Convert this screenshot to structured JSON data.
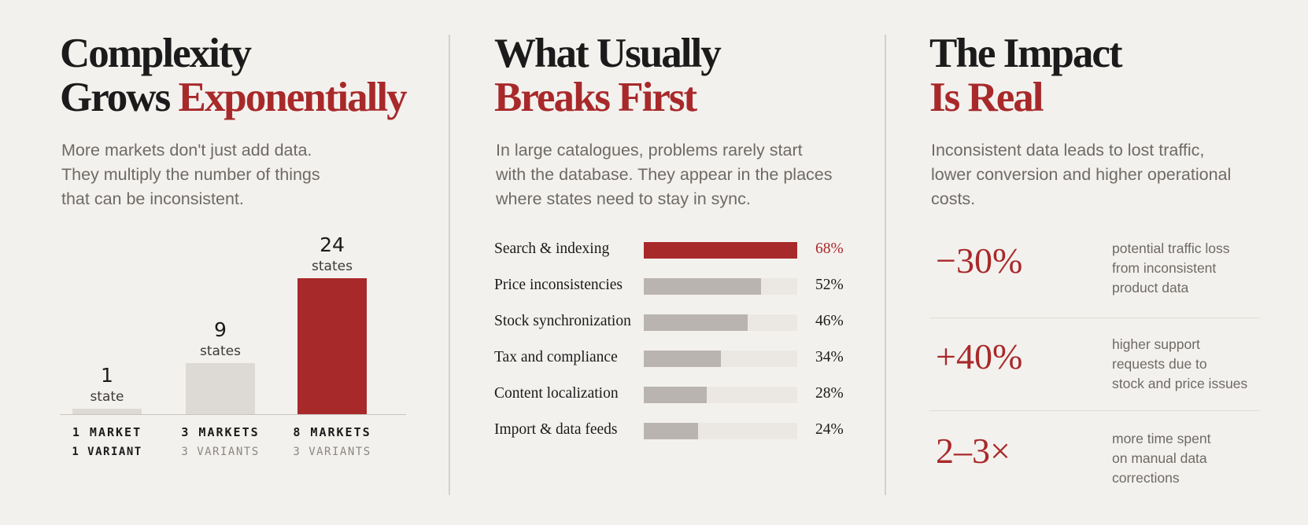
{
  "panels": [
    {
      "title_line1": "Complexity",
      "title_line2_plain": "Grows ",
      "title_line2_accent": "Exponentially",
      "lead": [
        "More markets don't just add data.",
        "They multiply the number of things",
        "that can be inconsistent."
      ]
    },
    {
      "title_line1": "What Usually",
      "title_line2_accent": "Breaks First",
      "lead": [
        "In large catalogues, problems rarely start",
        "with the database. They appear in the places",
        "where states need to stay in sync."
      ]
    },
    {
      "title_line1": "The Impact",
      "title_line2_accent": "Is Real",
      "lead": [
        "Inconsistent data leads to lost traffic,",
        "lower conversion and higher operational",
        "costs."
      ]
    }
  ],
  "colors": {
    "accent": "#a8292a",
    "bar_neutral": "#ddd9d5",
    "hbar_neutral": "#bab4b0",
    "background": "#f3f1ee"
  },
  "chart_data": [
    {
      "type": "bar",
      "title": "",
      "categories": [
        "1 MARKET",
        "3 MARKETS",
        "8 MARKETS"
      ],
      "subcategories": [
        "1 VARIANT",
        "3 VARIANTS",
        "3 VARIANTS"
      ],
      "values": [
        1,
        9,
        24
      ],
      "value_units": [
        "state",
        "states",
        "states"
      ],
      "highlight_index": 2,
      "ylim": [
        0,
        24
      ],
      "grid": false
    },
    {
      "type": "bar",
      "orientation": "horizontal",
      "title": "",
      "categories": [
        "Search & indexing",
        "Price inconsistencies",
        "Stock synchronization",
        "Tax and compliance",
        "Content localization",
        "Import & data feeds"
      ],
      "values": [
        68,
        52,
        46,
        34,
        28,
        24
      ],
      "value_labels": [
        "68%",
        "52%",
        "46%",
        "34%",
        "28%",
        "24%"
      ],
      "highlight_index": 0,
      "xlim": [
        0,
        68
      ],
      "grid": false
    }
  ],
  "stats": [
    {
      "value": "−30%",
      "desc": [
        "potential traffic loss",
        "from inconsistent",
        "product data"
      ]
    },
    {
      "value": "+40%",
      "desc": [
        "higher support",
        "requests due to",
        "stock and price issues"
      ]
    },
    {
      "value": "2–3×",
      "desc": [
        "more time spent",
        "on manual data",
        "corrections"
      ]
    }
  ]
}
